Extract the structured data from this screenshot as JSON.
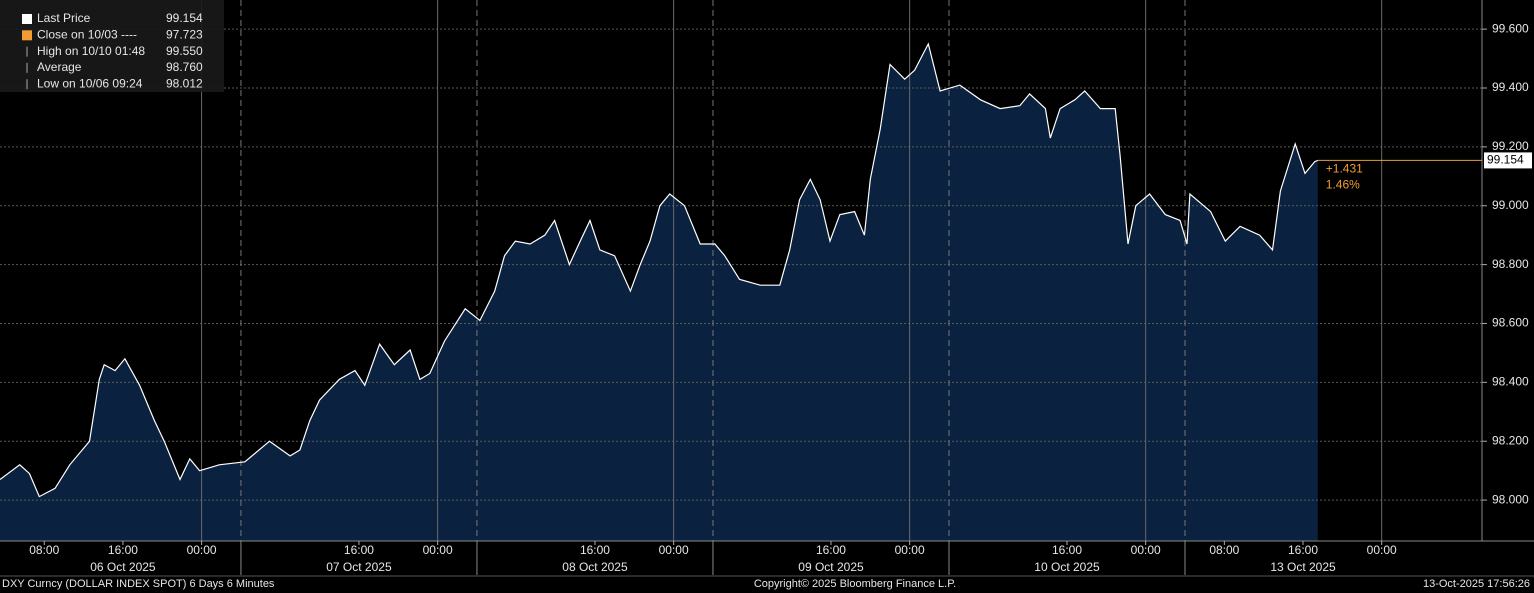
{
  "chart_data": {
    "type": "area",
    "series": [
      {
        "name": "Last Price",
        "color": "#ffffff",
        "fill": "#0b2140",
        "values": [
          98.07,
          98.12,
          98.09,
          98.012,
          98.04,
          98.12,
          98.2,
          98.41,
          98.46,
          98.44,
          98.48,
          98.39,
          98.27,
          98.2,
          98.07,
          98.14,
          98.1,
          98.12,
          98.13,
          98.2,
          98.15,
          98.17,
          98.27,
          98.34,
          98.41,
          98.44,
          98.39,
          98.53,
          98.46,
          98.51,
          98.41,
          98.43,
          98.54,
          98.65,
          98.61,
          98.71,
          98.83,
          98.88,
          98.87,
          98.9,
          98.95,
          98.8,
          98.88,
          98.95,
          98.85,
          98.83,
          98.71,
          98.8,
          98.88,
          99.0,
          99.04,
          99.0,
          98.87,
          98.87,
          98.83,
          98.75,
          98.73,
          98.73,
          98.85,
          99.02,
          99.09,
          99.02,
          98.88,
          98.97,
          98.98,
          98.9,
          99.09,
          99.26,
          99.48,
          99.43,
          99.46,
          99.55,
          99.39,
          99.41,
          99.36,
          99.33,
          99.34,
          99.38,
          99.33,
          99.23,
          99.33,
          99.36,
          99.39,
          99.33,
          99.33,
          99.17,
          98.87,
          99.0,
          99.04,
          98.97,
          98.95,
          98.87,
          99.04,
          98.98,
          98.88,
          98.93,
          98.9,
          98.85,
          99.05,
          99.21,
          99.11,
          99.15,
          99.154
        ]
      }
    ],
    "x": [
      3.5,
      5.5,
      6.5,
      7.5,
      9.1,
      10.6,
      12.6,
      13.6,
      14.1,
      15.2,
      16.2,
      17.7,
      19.2,
      20.2,
      21.8,
      22.8,
      23.8,
      25.8,
      28.4,
      30.9,
      33.0,
      34.0,
      35.0,
      36.0,
      38.0,
      39.6,
      40.6,
      42.1,
      43.6,
      45.2,
      46.2,
      47.2,
      48.7,
      50.8,
      52.3,
      53.8,
      54.8,
      55.9,
      57.4,
      58.9,
      59.9,
      61.4,
      62.5,
      63.5,
      64.5,
      66.0,
      67.6,
      68.6,
      69.6,
      70.6,
      71.6,
      73.1,
      74.7,
      76.2,
      77.2,
      78.7,
      80.8,
      82.8,
      83.8,
      84.8,
      85.9,
      86.9,
      87.9,
      88.9,
      90.4,
      91.4,
      92.0,
      93.0,
      94.0,
      95.5,
      96.5,
      97.9,
      99.1,
      101.1,
      103.2,
      105.2,
      107.2,
      108.2,
      109.8,
      110.3,
      111.3,
      112.8,
      113.8,
      115.4,
      116.9,
      117.4,
      118.2,
      119.0,
      120.4,
      122.0,
      123.5,
      124.2,
      124.5,
      126.6,
      128.1,
      129.6,
      131.6,
      132.9,
      133.7,
      135.2,
      136.2,
      137.2,
      137.5
    ],
    "xlim": [
      3.5,
      154.2
    ],
    "xticks": [
      {
        "value": 8,
        "label": "08:00"
      },
      {
        "value": 16,
        "label": "16:00"
      },
      {
        "value": 24,
        "label": "00:00"
      },
      {
        "value": 40,
        "label": "16:00"
      },
      {
        "value": 48,
        "label": "00:00"
      },
      {
        "value": 64,
        "label": "16:00"
      },
      {
        "value": 72,
        "label": "00:00"
      },
      {
        "value": 88,
        "label": "16:00"
      },
      {
        "value": 96,
        "label": "00:00"
      },
      {
        "value": 112,
        "label": "16:00"
      },
      {
        "value": 120,
        "label": "00:00"
      },
      {
        "value": 128,
        "label": "08:00"
      },
      {
        "value": 136,
        "label": "16:00"
      },
      {
        "value": 144,
        "label": "00:00"
      }
    ],
    "date_ticks": [
      {
        "value": 16,
        "label": "06 Oct 2025"
      },
      {
        "value": 40,
        "label": "07 Oct 2025"
      },
      {
        "value": 64,
        "label": "08 Oct 2025"
      },
      {
        "value": 88,
        "label": "09 Oct 2025"
      },
      {
        "value": 112,
        "label": "10 Oct 2025"
      },
      {
        "value": 136,
        "label": "13 Oct 2025"
      }
    ],
    "xgrid": [
      24,
      48,
      72,
      96,
      120,
      144
    ],
    "ylim": [
      97.861,
      99.699
    ],
    "yticks": [
      {
        "value": 98,
        "label": "98.000"
      },
      {
        "value": 98.2,
        "label": "98.200"
      },
      {
        "value": 98.4,
        "label": "98.400"
      },
      {
        "value": 98.6,
        "label": "98.600"
      },
      {
        "value": 98.8,
        "label": "98.800"
      },
      {
        "value": 99,
        "label": "99.000"
      },
      {
        "value": 99.2,
        "label": "99.200"
      },
      {
        "value": 99.4,
        "label": "99.400"
      },
      {
        "value": 99.6,
        "label": "99.600"
      }
    ],
    "grid": true,
    "last_price": {
      "value": 99.154,
      "label": "99.154",
      "color": "#f39c34"
    },
    "change": [
      "+1.431",
      "1.46%"
    ],
    "legend": [
      {
        "label": "Last Price",
        "value": "99.154",
        "color": "#ffffff"
      },
      {
        "label": "Close on 10/03 ----",
        "value": "97.723",
        "color": "#f39c34"
      },
      {
        "label": "High on 10/10 01:48",
        "value": "99.550"
      },
      {
        "label": "Average",
        "value": "98.760"
      },
      {
        "label": "Low on 10/06 09:24",
        "value": "98.012"
      }
    ],
    "footer": [
      "DXY Curncy (DOLLAR INDEX SPOT) 6 Days 6 Minutes",
      "Copyright© 2025 Bloomberg Finance L.P.",
      "13-Oct-2025 17:56:26"
    ]
  }
}
